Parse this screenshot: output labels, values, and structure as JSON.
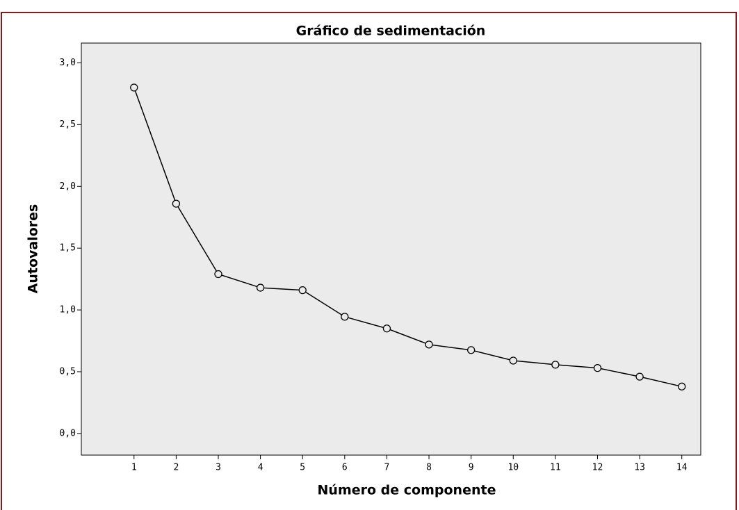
{
  "chart_data": {
    "type": "line",
    "title": "Gráfico de sedimentación",
    "x_label": "Número de componente",
    "y_label": "Autovalores",
    "x": [
      1,
      2,
      3,
      4,
      5,
      6,
      7,
      8,
      9,
      10,
      11,
      12,
      13,
      14
    ],
    "series": [
      {
        "color": "#000000",
        "values": [
          2.8,
          1.86,
          1.29,
          1.18,
          1.16,
          0.945,
          0.85,
          0.72,
          0.675,
          0.59,
          0.557,
          0.53,
          0.46,
          0.38
        ]
      }
    ],
    "xlim": [
      -0.25,
      14.45
    ],
    "ylim": [
      -0.175,
      3.16
    ],
    "xticks": [
      1,
      2,
      3,
      4,
      5,
      6,
      7,
      8,
      9,
      10,
      11,
      12,
      13,
      14
    ],
    "yticks": [
      {
        "value": 0,
        "label": "0,0"
      },
      {
        "value": 0.5,
        "label": "0,5"
      },
      {
        "value": 1,
        "label": "1,0"
      },
      {
        "value": 1.5,
        "label": "1,5"
      },
      {
        "value": 2,
        "label": "2,0"
      },
      {
        "value": 2.5,
        "label": "2,5"
      },
      {
        "value": 3,
        "label": "3,0"
      }
    ],
    "grid": false,
    "markers": "open-circle"
  }
}
